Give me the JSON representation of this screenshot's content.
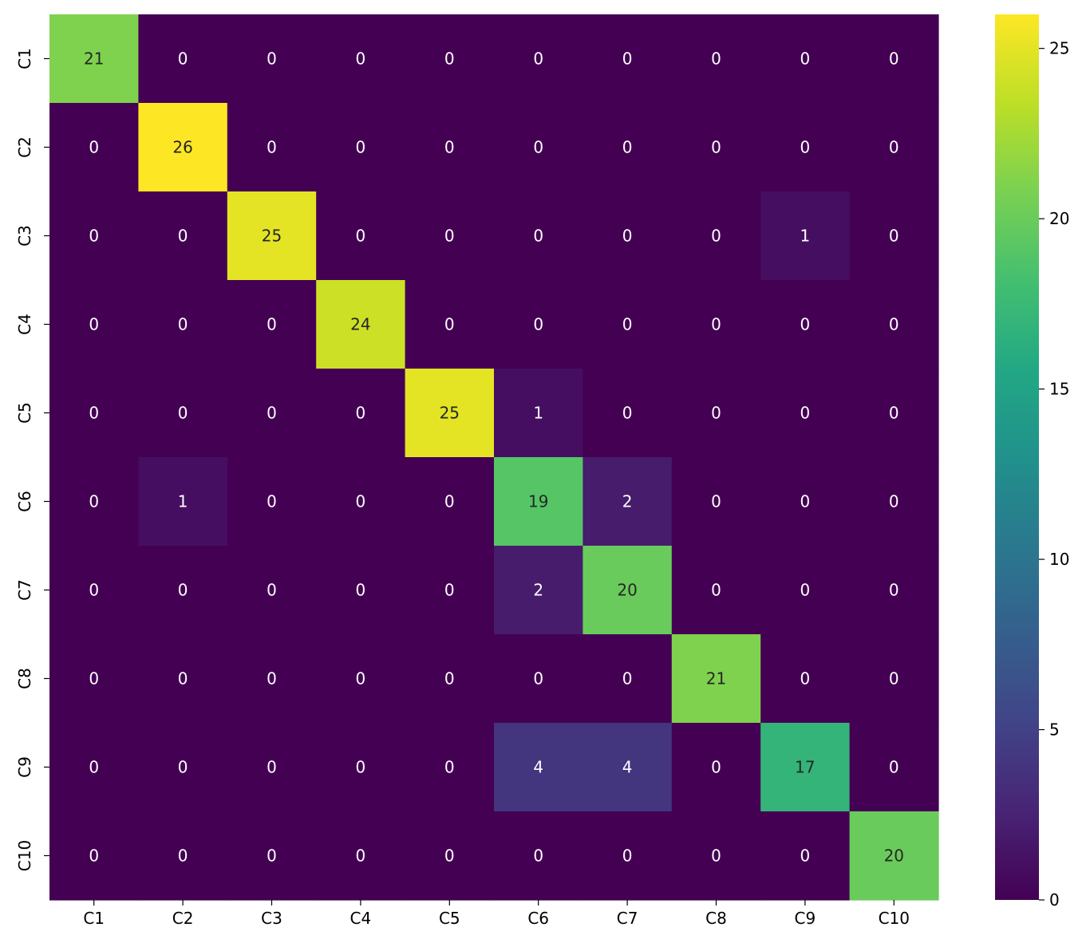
{
  "chart_data": {
    "type": "heatmap",
    "title": "",
    "xlabel": "",
    "ylabel": "",
    "colormap": "viridis",
    "x_categories": [
      "C1",
      "C2",
      "C3",
      "C4",
      "C5",
      "C6",
      "C7",
      "C8",
      "C9",
      "C10"
    ],
    "y_categories": [
      "C1",
      "C2",
      "C3",
      "C4",
      "C5",
      "C6",
      "C7",
      "C8",
      "C9",
      "C10"
    ],
    "values": [
      [
        21,
        0,
        0,
        0,
        0,
        0,
        0,
        0,
        0,
        0
      ],
      [
        0,
        26,
        0,
        0,
        0,
        0,
        0,
        0,
        0,
        0
      ],
      [
        0,
        0,
        25,
        0,
        0,
        0,
        0,
        0,
        1,
        0
      ],
      [
        0,
        0,
        0,
        24,
        0,
        0,
        0,
        0,
        0,
        0
      ],
      [
        0,
        0,
        0,
        0,
        25,
        1,
        0,
        0,
        0,
        0
      ],
      [
        0,
        1,
        0,
        0,
        0,
        19,
        2,
        0,
        0,
        0
      ],
      [
        0,
        0,
        0,
        0,
        0,
        2,
        20,
        0,
        0,
        0
      ],
      [
        0,
        0,
        0,
        0,
        0,
        0,
        0,
        21,
        0,
        0
      ],
      [
        0,
        0,
        0,
        0,
        0,
        4,
        4,
        0,
        17,
        0
      ],
      [
        0,
        0,
        0,
        0,
        0,
        0,
        0,
        0,
        0,
        20
      ]
    ],
    "annotations": true,
    "vmin": 0,
    "vmax": 26,
    "colorbar": {
      "ticks": [
        0,
        5,
        10,
        15,
        20,
        25
      ],
      "position": "right"
    },
    "grid": false
  }
}
